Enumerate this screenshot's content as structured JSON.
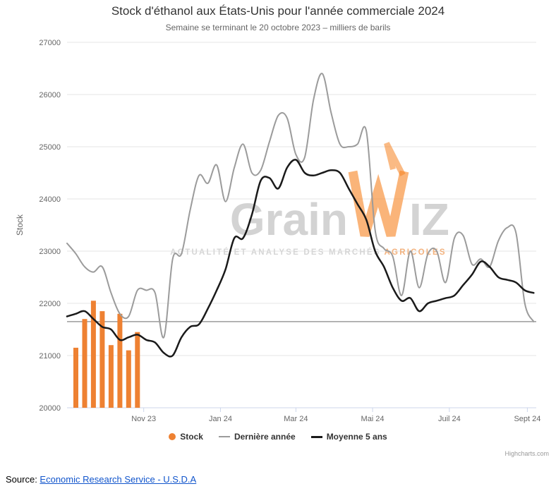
{
  "title": "Stock d'éthanol aux États-Unis pour l'année commerciale 2024",
  "subtitle": "Semaine se terminant le 20 octobre 2023 – milliers de barils",
  "credits": "Highcharts.com",
  "source": {
    "prefix": "Source: ",
    "link_text": "Economic Research Service - U.S.D.A"
  },
  "watermark": {
    "grain": "Grain",
    "w": "W",
    "iz": "IZ",
    "tagline_gray": "ACTUALITÉ ET ANALYSE DES MARCHÉS",
    "tagline_orange": "AGRICOLES"
  },
  "legend": {
    "items": [
      {
        "label": "Stock"
      },
      {
        "label": "Dernière année"
      },
      {
        "label": "Moyenne 5 ans"
      }
    ]
  },
  "chart_data": {
    "type": "mixed",
    "title": "Stock d'éthanol aux États-Unis pour l'année commerciale 2024",
    "subtitle": "Semaine se terminant le 20 octobre 2023 – milliers de barils",
    "ylabel": "Stock",
    "ylim": [
      20000,
      27000
    ],
    "y_ticks": [
      20000,
      21000,
      22000,
      23000,
      24000,
      25000,
      26000,
      27000
    ],
    "x_range_weeks": [
      0,
      53.3
    ],
    "x_ticks": [
      {
        "label": "Nov 23",
        "week": 8.71
      },
      {
        "label": "Jan 24",
        "week": 17.43
      },
      {
        "label": "Mar 24",
        "week": 26.0
      },
      {
        "label": "Mai 24",
        "week": 34.71
      },
      {
        "label": "Juil 24",
        "week": 43.43
      },
      {
        "label": "Sept 24",
        "week": 52.29
      }
    ],
    "grid": true,
    "legend_position": "bottom",
    "reference_line": {
      "value": 21650,
      "color": "#9b9b9b"
    },
    "series": [
      {
        "name": "Stock",
        "type": "column",
        "color": "#ee8132",
        "x": [
          1,
          2,
          3,
          4,
          5,
          6,
          7,
          8
        ],
        "values": [
          21150,
          21700,
          22050,
          21850,
          21200,
          21800,
          21100,
          21450
        ]
      },
      {
        "name": "Dernière année",
        "type": "line",
        "color": "#9b9b9b",
        "line_width": 2,
        "x_start": 0,
        "x_step": 1,
        "values": [
          23150,
          22950,
          22700,
          22600,
          22700,
          22200,
          21800,
          21750,
          22250,
          22250,
          22200,
          21350,
          22850,
          22950,
          23800,
          24450,
          24300,
          24650,
          23950,
          24600,
          25050,
          24500,
          24550,
          25100,
          25600,
          25550,
          24850,
          24800,
          25900,
          26400,
          25650,
          25050,
          25000,
          25050,
          25300,
          23400,
          23050,
          22900,
          22150,
          23000,
          22300,
          22950,
          23000,
          22400,
          23250,
          23300,
          22750,
          22850,
          22700,
          23200,
          23450,
          23350,
          22000,
          21650
        ]
      },
      {
        "name": "Moyenne 5 ans",
        "type": "line",
        "color": "#1a1a1a",
        "line_width": 2.5,
        "x_start": 0,
        "x_step": 1,
        "values": [
          21750,
          21800,
          21850,
          21700,
          21550,
          21500,
          21300,
          21350,
          21400,
          21300,
          21250,
          21050,
          21000,
          21350,
          21550,
          21600,
          21900,
          22250,
          22650,
          23250,
          23250,
          23700,
          24350,
          24400,
          24200,
          24600,
          24750,
          24500,
          24450,
          24500,
          24550,
          24500,
          24200,
          23900,
          23600,
          23000,
          22700,
          22300,
          22050,
          22100,
          21850,
          22000,
          22050,
          22100,
          22150,
          22350,
          22550,
          22800,
          22700,
          22500,
          22450,
          22400,
          22250,
          22200
        ]
      }
    ]
  }
}
